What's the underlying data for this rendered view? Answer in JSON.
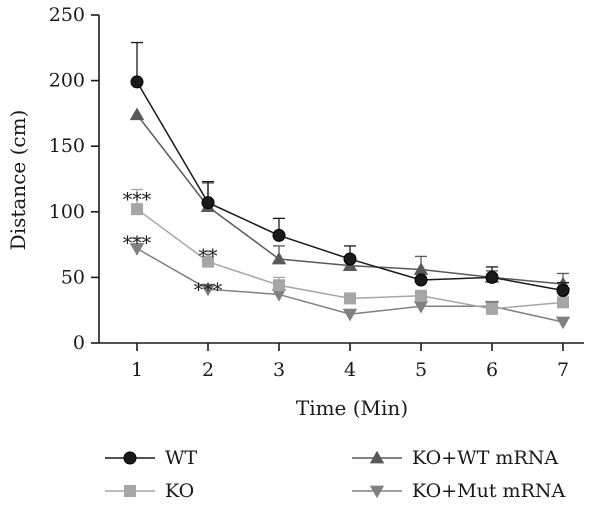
{
  "chart_data": {
    "type": "line",
    "title": "",
    "xlabel": "Time (Min)",
    "ylabel": "Distance (cm)",
    "x": [
      1,
      2,
      3,
      4,
      5,
      6,
      7
    ],
    "x_ticks": [
      "1",
      "2",
      "3",
      "4",
      "5",
      "6",
      "7"
    ],
    "ylim": [
      0,
      250
    ],
    "y_ticks": [
      "0",
      "50",
      "100",
      "150",
      "200",
      "250"
    ],
    "grid": false,
    "legend_position": "bottom",
    "series": [
      {
        "name": "WT",
        "marker": "circle",
        "color": "#1a1a1a",
        "values": [
          199,
          107,
          82,
          64,
          48,
          50,
          40
        ],
        "error_plus": [
          30,
          16,
          13,
          10,
          0,
          8,
          6
        ]
      },
      {
        "name": "KO",
        "marker": "square",
        "color": "#a6a6a6",
        "values": [
          102,
          62,
          44,
          34,
          36,
          26,
          31
        ],
        "error_plus": [
          15,
          8,
          6,
          0,
          0,
          0,
          0
        ]
      },
      {
        "name": "KO+WT mRNA",
        "marker": "triangle-up",
        "color": "#595959",
        "values": [
          174,
          104,
          64,
          59,
          56,
          50,
          45
        ],
        "error_plus": [
          0,
          18,
          10,
          0,
          10,
          5,
          8
        ]
      },
      {
        "name": "KO+Mut mRNA",
        "marker": "triangle-down",
        "color": "#808080",
        "values": [
          72,
          41,
          37,
          22,
          28,
          28,
          16
        ],
        "error_plus": [
          8,
          0,
          0,
          0,
          0,
          0,
          0
        ]
      }
    ],
    "annotations": [
      {
        "x": 1,
        "y": 115,
        "text": "***"
      },
      {
        "x": 1,
        "y": 82,
        "text": "***"
      },
      {
        "x": 2,
        "y": 72,
        "text": "**"
      },
      {
        "x": 2,
        "y": 46,
        "text": "***"
      }
    ]
  }
}
